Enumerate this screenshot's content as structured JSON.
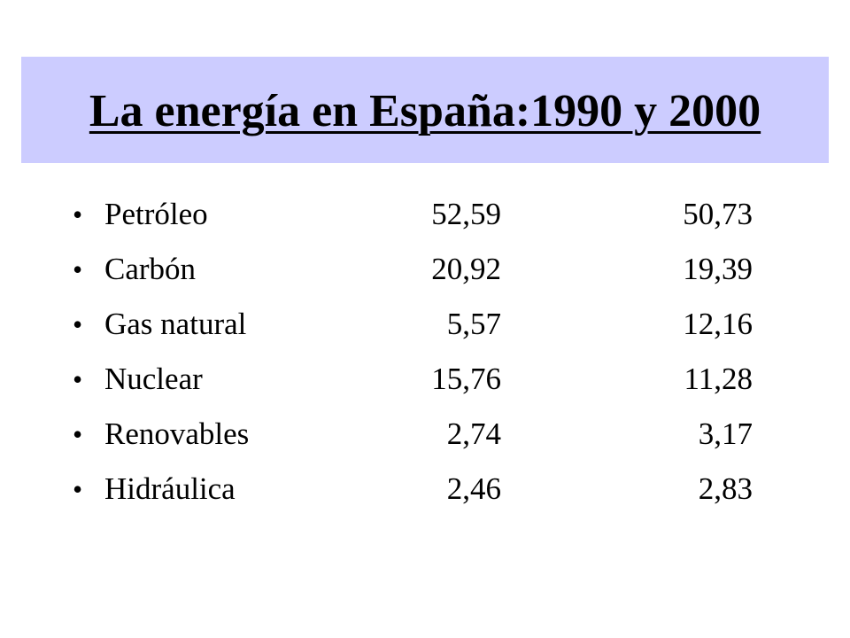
{
  "title": "La energía en España:1990 y 2000",
  "bullet": "•",
  "rows": [
    {
      "label": "Petróleo",
      "v1990": "52,59",
      "v2000": "50,73"
    },
    {
      "label": "Carbón",
      "v1990": "20,92",
      "v2000": "19,39"
    },
    {
      "label": "Gas natural",
      "v1990": "5,57",
      "v2000": "12,16"
    },
    {
      "label": "Nuclear",
      "v1990": "15,76",
      "v2000": "11,28"
    },
    {
      "label": "Renovables",
      "v1990": "2,74",
      "v2000": "3,17"
    },
    {
      "label": "Hidráulica",
      "v1990": "2,46",
      "v2000": "2,83"
    }
  ],
  "colors": {
    "title_band": "#ccccff",
    "text": "#000000",
    "background": "#ffffff"
  }
}
